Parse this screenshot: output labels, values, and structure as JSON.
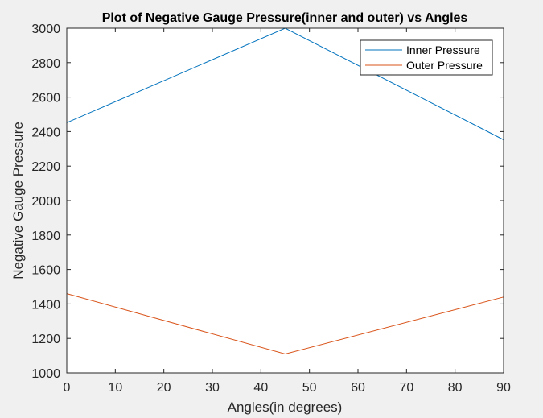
{
  "chart_data": {
    "type": "line",
    "title": "Plot of Negative Gauge Pressure(inner and outer) vs Angles",
    "xlabel": "Angles(in degrees)",
    "ylabel": "Negative Gauge Pressure",
    "xlim": [
      0,
      90
    ],
    "ylim": [
      1000,
      3000
    ],
    "xticks": [
      0,
      10,
      20,
      30,
      40,
      50,
      60,
      70,
      80,
      90
    ],
    "yticks": [
      1000,
      1200,
      1400,
      1600,
      1800,
      2000,
      2200,
      2400,
      2600,
      2800,
      3000
    ],
    "grid": false,
    "legend_position": "top-right",
    "x": [
      0,
      45,
      90
    ],
    "series": [
      {
        "name": "Inner Pressure",
        "values": [
          2452,
          3000,
          2353
        ],
        "color": "#0072BD"
      },
      {
        "name": "Outer Pressure",
        "values": [
          1460,
          1110,
          1440
        ],
        "color": "#D95319"
      }
    ]
  }
}
